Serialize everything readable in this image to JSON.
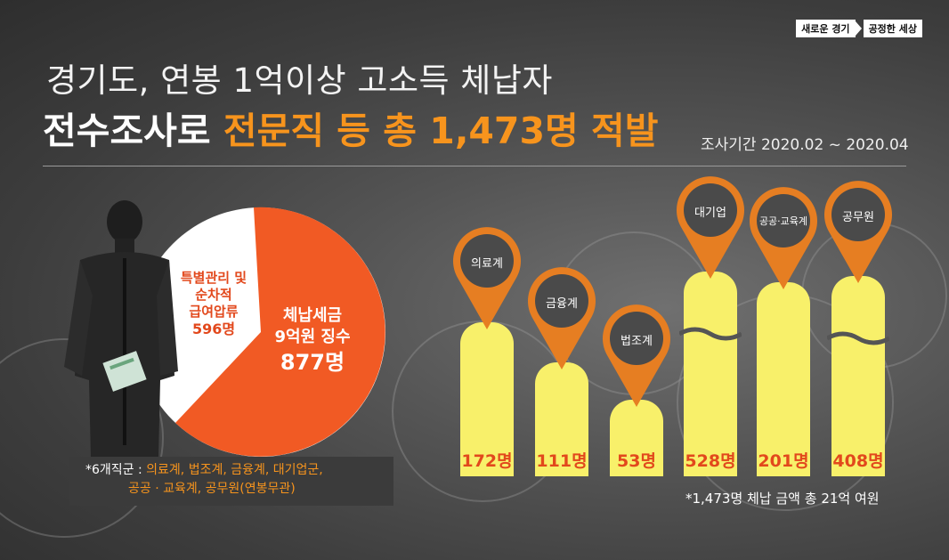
{
  "header": {
    "slogan_left": "새로운 경기",
    "slogan_right": "공정한 세상",
    "title_line1": "경기도, 연봉 1억이상 고소득 체납자",
    "title_line2_white": "전수조사로 ",
    "title_line2_highlight": "전문직 등 총 1,473명 적발",
    "period": "조사기간 2020.02 ~ 2020.04"
  },
  "pie": {
    "large_label_line1": "체납세금",
    "large_label_line2": "9억원 징수",
    "large_value": "877명",
    "small_label_line1": "특별관리 및",
    "small_label_line2": "순차적",
    "small_label_line3": "급여압류",
    "small_value": "596명",
    "colors": {
      "large": "#f15a24",
      "small": "#ffffff"
    }
  },
  "note": {
    "prefix": "*6개직군 : ",
    "line1_rest": "의료계, 법조계, 금융계, 대기업군,",
    "line2": "공공 · 교육계, 공무원(연봉무관)"
  },
  "chart_data": {
    "type": "bar",
    "categories": [
      "의료계",
      "금융계",
      "법조계",
      "대기업",
      "공공·교육계",
      "공무원"
    ],
    "values": [
      172,
      111,
      53,
      528,
      201,
      408
    ],
    "value_labels": [
      "172명",
      "111명",
      "53명",
      "528명",
      "201명",
      "408명"
    ],
    "footnote": "*1,473명 체납 금액 총 21억 여원",
    "colors": {
      "bar": "#f8f06a",
      "pin": "#e67e22",
      "value": "#e2481c"
    }
  }
}
